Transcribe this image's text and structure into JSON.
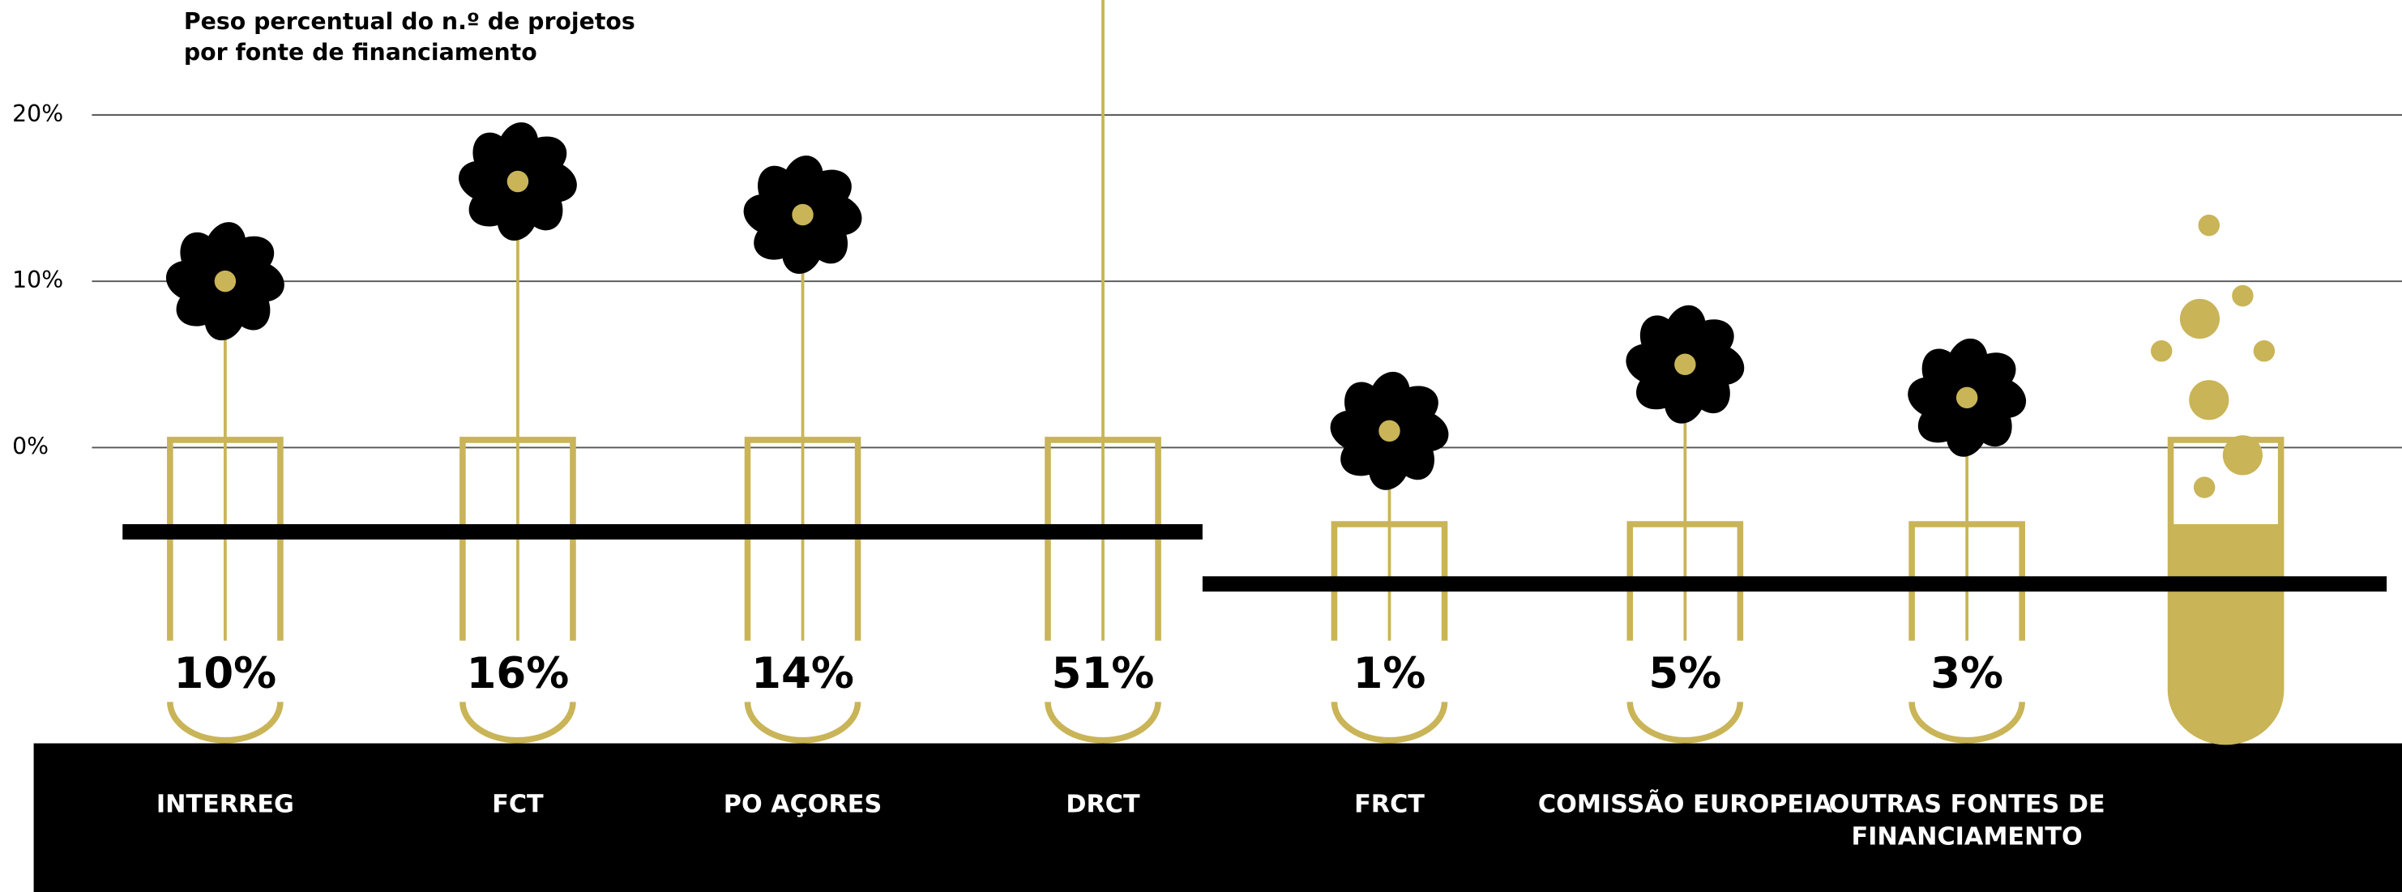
{
  "chart_data": {
    "type": "flower",
    "title": "Peso percentual do n.º de projetos por fonte de financiamento",
    "categories": [
      "INTERREG",
      "FCT",
      "PO AÇORES",
      "DRCT",
      "FRCT",
      "COMISSÃO EUROPEIA",
      "OUTRAS FONTES DE FINANCIAMENTO"
    ],
    "values": [
      10,
      16,
      14,
      51,
      1,
      5,
      3
    ],
    "value_labels": [
      "10%",
      "16%",
      "14%",
      "51%",
      "1%",
      "5%",
      "3%"
    ],
    "color": "#c9b458",
    "ylim": [
      0,
      20
    ],
    "yticks": [
      {
        "value": 0,
        "label": "0%"
      },
      {
        "value": 10,
        "label": "10%"
      },
      {
        "value": 20,
        "label": "20%"
      }
    ],
    "grid": true
  }
}
